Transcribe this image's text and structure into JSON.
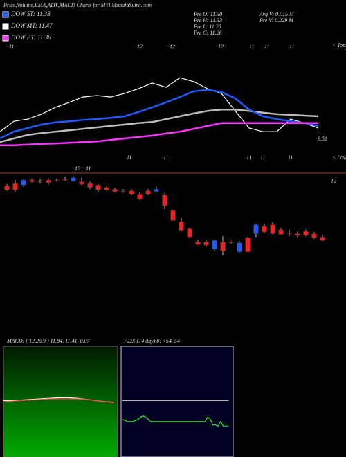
{
  "chart_data": {
    "type": "candlestick",
    "title": "Price,Volume,EMA,ADX,MACD Charts for MYI MunafaSutra.com",
    "legend": [
      {
        "label": "DOW ST: 11.38",
        "color": "#1f5bff"
      },
      {
        "label": "DOW MT: 11.47",
        "color": "#ffffff"
      },
      {
        "label": "DOW PT: 11.36",
        "color": "#ff33ff"
      }
    ],
    "stats": [
      "Pre  O: 11.30",
      "Pre  H: 11.33",
      "Pre  L: 11.25",
      "Pre  C: 11.26",
      "Avg V: 0.015 M",
      "Pre  V: 0.229 M"
    ],
    "date_labels": [
      "11",
      "12",
      "12",
      "12",
      "11",
      "11",
      "11",
      "11",
      "11",
      "11",
      "11",
      "11",
      "12",
      "11"
    ],
    "upper": {
      "ylim": [
        9.3,
        12.3
      ],
      "annotations": [
        "< Tops",
        "9.51",
        "< Lows"
      ],
      "series": [
        {
          "color": "#ffffff",
          "values": [
            9.78,
            10.07,
            10.13,
            10.27,
            10.46,
            10.6,
            10.75,
            10.79,
            10.75,
            10.85,
            10.98,
            11.14,
            11.02,
            11.29,
            11.18,
            10.98,
            10.85,
            10.36,
            9.88,
            9.78,
            9.78,
            10.13,
            10.02,
            9.88
          ]
        },
        {
          "name": "DOW MT: 11.47",
          "color": "#bbbbbb",
          "values": [
            9.49,
            9.59,
            9.69,
            9.74,
            9.78,
            9.82,
            9.86,
            9.9,
            9.94,
            9.98,
            10.02,
            10.05,
            10.13,
            10.21,
            10.29,
            10.36,
            10.4,
            10.4,
            10.36,
            10.31,
            10.27,
            10.25,
            10.23,
            10.21
          ]
        },
        {
          "name": "DOW ST: 11.38",
          "color": "#1f5bff",
          "values": [
            9.59,
            9.78,
            9.88,
            9.98,
            10.04,
            10.07,
            10.11,
            10.13,
            10.17,
            10.21,
            10.33,
            10.46,
            10.6,
            10.75,
            10.91,
            10.95,
            10.89,
            10.71,
            10.4,
            10.21,
            10.13,
            10.07,
            10.02,
            9.94
          ]
        },
        {
          "name": "DOW PT: 11.36",
          "color": "#ff33ff",
          "values": [
            9.4,
            9.4,
            9.42,
            9.44,
            9.45,
            9.47,
            9.49,
            9.51,
            9.55,
            9.59,
            9.63,
            9.67,
            9.73,
            9.78,
            9.86,
            9.94,
            10.02,
            10.02,
            10.02,
            10.02,
            10.02,
            10.02,
            10.02,
            10.02
          ]
        }
      ]
    },
    "ylim": [
      10.9,
      12.1
    ],
    "yticks": [
      12
    ],
    "up_color": "#1f5bff",
    "down_color": "#ee2222",
    "candles": [
      [
        11.92,
        11.94,
        11.86,
        11.87
      ],
      [
        11.95,
        11.99,
        11.85,
        11.87
      ],
      [
        11.93,
        12.0,
        11.91,
        11.99
      ],
      [
        11.99,
        12.01,
        11.96,
        11.97
      ],
      [
        11.98,
        12.0,
        11.95,
        11.97
      ],
      [
        11.99,
        12.01,
        11.94,
        11.96
      ],
      [
        11.99,
        12.01,
        11.97,
        11.98
      ],
      [
        12.0,
        12.03,
        11.98,
        11.99
      ],
      [
        11.98,
        12.04,
        11.97,
        12.02
      ],
      [
        11.97,
        12.02,
        11.93,
        11.94
      ],
      [
        11.95,
        11.97,
        11.88,
        11.9
      ],
      [
        11.93,
        11.94,
        11.85,
        11.87
      ],
      [
        11.9,
        11.92,
        11.86,
        11.87
      ],
      [
        11.88,
        11.89,
        11.84,
        11.85
      ],
      [
        11.86,
        11.88,
        11.84,
        11.85
      ],
      [
        11.86,
        11.88,
        11.81,
        11.82
      ],
      [
        11.82,
        11.84,
        11.75,
        11.76
      ],
      [
        11.86,
        11.88,
        11.81,
        11.82
      ],
      [
        11.85,
        11.91,
        11.84,
        11.88
      ],
      [
        11.81,
        11.83,
        11.64,
        11.68
      ],
      [
        11.62,
        11.63,
        11.5,
        11.5
      ],
      [
        11.49,
        11.53,
        11.37,
        11.38
      ],
      [
        11.4,
        11.41,
        11.29,
        11.3
      ],
      [
        11.24,
        11.26,
        11.2,
        11.21
      ],
      [
        11.24,
        11.26,
        11.19,
        11.2
      ],
      [
        11.15,
        11.27,
        11.13,
        11.26
      ],
      [
        11.24,
        11.31,
        11.08,
        11.13
      ],
      [
        11.24,
        11.25,
        11.22,
        11.23
      ],
      [
        11.12,
        11.25,
        11.11,
        11.23
      ],
      [
        11.29,
        11.3,
        11.12,
        11.12
      ],
      [
        11.34,
        11.46,
        11.3,
        11.45
      ],
      [
        11.43,
        11.46,
        11.35,
        11.36
      ],
      [
        11.45,
        11.48,
        11.33,
        11.34
      ],
      [
        11.39,
        11.41,
        11.33,
        11.33
      ],
      [
        11.35,
        11.39,
        11.31,
        11.34
      ],
      [
        11.34,
        11.37,
        11.3,
        11.32
      ],
      [
        11.37,
        11.39,
        11.31,
        11.32
      ],
      [
        11.34,
        11.36,
        11.28,
        11.29
      ],
      [
        11.3,
        11.33,
        11.25,
        11.26
      ]
    ],
    "macd": {
      "title": "MACD: ( 12,26,9 ) 11.84, 11.41, 0.07",
      "ylim": [
        -1,
        1
      ],
      "series": [
        {
          "color": "#ffffff",
          "values": [
            0.02,
            0.02,
            0.03,
            0.04,
            0.05,
            0.06,
            0.07,
            0.07,
            0.06,
            0.04,
            0.02,
            0.0,
            -0.01
          ]
        },
        {
          "color": "#ff4444",
          "values": [
            0.0,
            0.01,
            0.02,
            0.03,
            0.04,
            0.05,
            0.05,
            0.05,
            0.05,
            0.04,
            0.02,
            0.0,
            -0.02
          ]
        }
      ]
    },
    "adx": {
      "title": "ADX (14 day) 0, +54, 54",
      "ylim": [
        0,
        100
      ],
      "series": [
        {
          "color": "#bbbbbb",
          "values": [
            51,
            51,
            51,
            51,
            51,
            51,
            51,
            51,
            51,
            51,
            51,
            51,
            51,
            51,
            51,
            51,
            51,
            51,
            51,
            51,
            51,
            51,
            51,
            51,
            51,
            51,
            51,
            51,
            51,
            51,
            51,
            51,
            51,
            51,
            51,
            51,
            51,
            51,
            51,
            51,
            51,
            51,
            51,
            51,
            51,
            51,
            51,
            51,
            51,
            51,
            51,
            51,
            51,
            51,
            51,
            51,
            51,
            51,
            51,
            51,
            51,
            51,
            51,
            51,
            51,
            51,
            51,
            51,
            51,
            51,
            51,
            51,
            51,
            51,
            51,
            51,
            51,
            51,
            51,
            51,
            51,
            51,
            51,
            51,
            51,
            51,
            51,
            51,
            51,
            51,
            51,
            51,
            51,
            51,
            51,
            51,
            51,
            51,
            51,
            51,
            51,
            51,
            51,
            51,
            51,
            51,
            51,
            51,
            51,
            51,
            51,
            51,
            51,
            51,
            51,
            51,
            51,
            51,
            51,
            51,
            51,
            51,
            51,
            51,
            51,
            51,
            51,
            51,
            51,
            51,
            51,
            51,
            51,
            51,
            51,
            51,
            51,
            51,
            51,
            51,
            51,
            51,
            51,
            51,
            51,
            51,
            51,
            51,
            51,
            51,
            51,
            51,
            51,
            51,
            51,
            51,
            51
          ]
        },
        {
          "color": "#22ee22",
          "values": [
            34,
            33,
            32,
            32,
            32,
            33,
            34,
            36,
            37,
            36,
            34,
            32,
            32,
            32,
            32,
            32,
            32,
            32,
            32,
            32,
            32,
            32,
            32,
            32,
            32,
            32,
            32,
            32,
            32,
            32,
            32,
            32,
            32,
            36,
            34,
            29,
            29,
            28,
            32,
            28,
            28,
            28
          ]
        }
      ]
    }
  }
}
